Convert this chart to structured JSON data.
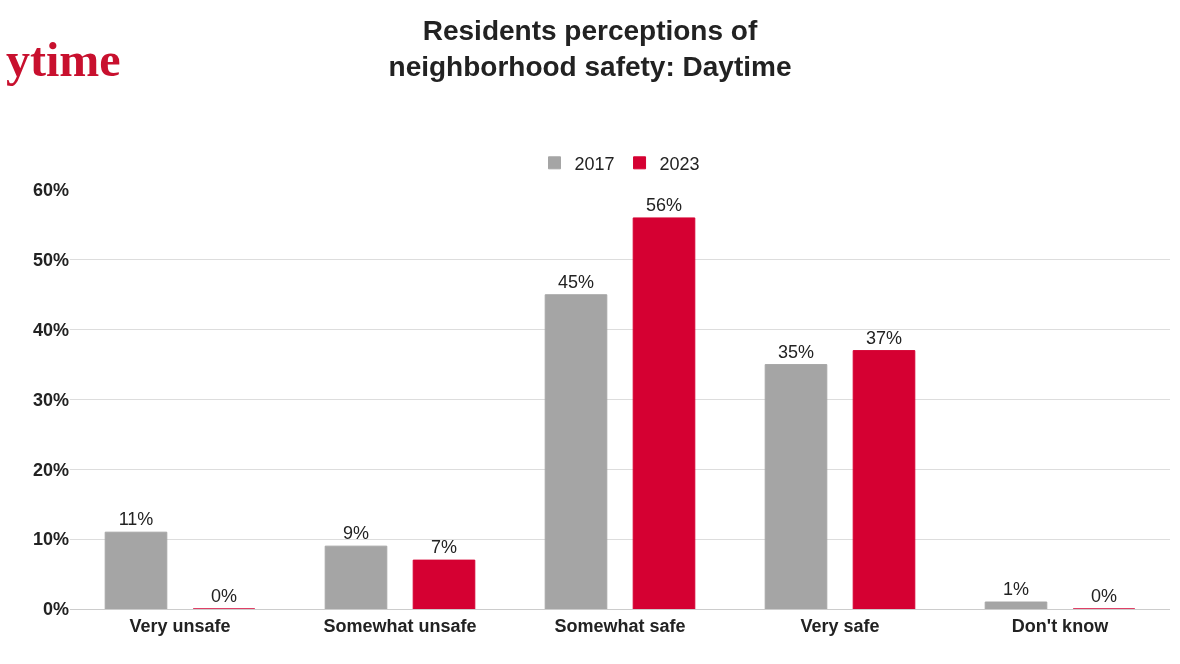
{
  "chart_data": {
    "type": "bar",
    "title": "Residents perceptions of\nneighborhood safety: Daytime",
    "categories": [
      "Very unsafe",
      "Somewhat unsafe",
      "Somewhat safe",
      "Very safe",
      "Don't know"
    ],
    "series": [
      {
        "name": "2017",
        "color": "#a5a5a5",
        "values": [
          11,
          9,
          45,
          35,
          1
        ],
        "value_labels": [
          "11%",
          "9%",
          "45%",
          "35%",
          "1%"
        ]
      },
      {
        "name": "2023",
        "color": "#d50032",
        "values": [
          0,
          7,
          56,
          37,
          0
        ],
        "value_labels": [
          "0%",
          "7%",
          "56%",
          "37%",
          "0%"
        ]
      }
    ],
    "ylim": [
      0,
      60
    ],
    "yticks": [
      {
        "value": 0,
        "label": "0%"
      },
      {
        "value": 10,
        "label": "10%"
      },
      {
        "value": 20,
        "label": "20%"
      },
      {
        "value": 30,
        "label": "30%"
      },
      {
        "value": 40,
        "label": "40%"
      },
      {
        "value": 50,
        "label": "50%"
      },
      {
        "value": 60,
        "label": "60%"
      }
    ],
    "grid": "y",
    "legend": "top",
    "annotations": [
      "ytime"
    ]
  }
}
